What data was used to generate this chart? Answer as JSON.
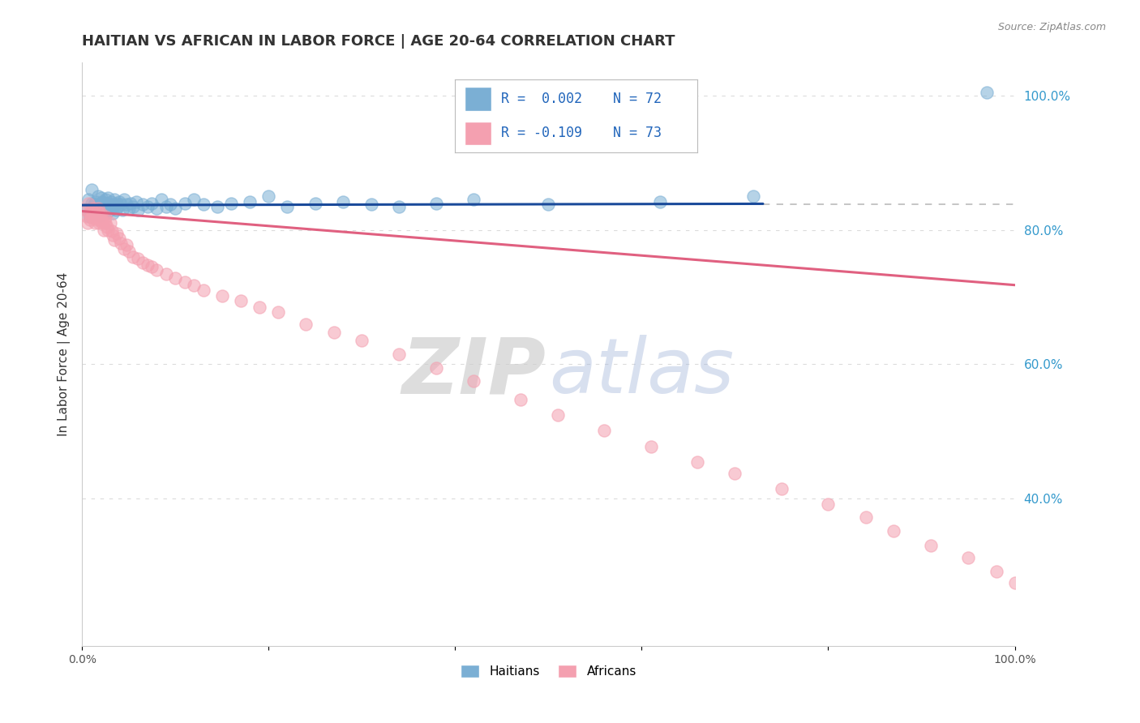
{
  "title": "HAITIAN VS AFRICAN IN LABOR FORCE | AGE 20-64 CORRELATION CHART",
  "source_text": "Source: ZipAtlas.com",
  "ylabel": "In Labor Force | Age 20-64",
  "xlim": [
    0,
    1.0
  ],
  "ylim": [
    0.18,
    1.05
  ],
  "x_tick_positions": [
    0.0,
    1.0
  ],
  "x_tick_labels": [
    "0.0%",
    "100.0%"
  ],
  "y_ticks_right": [
    0.4,
    0.6,
    0.8,
    1.0
  ],
  "y_tick_labels_right": [
    "40.0%",
    "60.0%",
    "80.0%",
    "100.0%"
  ],
  "blue_color": "#7BAFD4",
  "pink_color": "#F4A0B0",
  "blue_line_color": "#1A4A9A",
  "pink_line_color": "#E06080",
  "blue_scatter_x": [
    0.005,
    0.007,
    0.008,
    0.01,
    0.01,
    0.012,
    0.013,
    0.015,
    0.015,
    0.016,
    0.017,
    0.018,
    0.018,
    0.019,
    0.02,
    0.02,
    0.021,
    0.022,
    0.022,
    0.023,
    0.024,
    0.025,
    0.025,
    0.026,
    0.027,
    0.028,
    0.028,
    0.03,
    0.031,
    0.032,
    0.033,
    0.034,
    0.035,
    0.036,
    0.037,
    0.038,
    0.04,
    0.042,
    0.043,
    0.045,
    0.048,
    0.05,
    0.052,
    0.055,
    0.058,
    0.06,
    0.065,
    0.07,
    0.075,
    0.08,
    0.085,
    0.09,
    0.095,
    0.1,
    0.11,
    0.12,
    0.13,
    0.145,
    0.16,
    0.18,
    0.2,
    0.22,
    0.25,
    0.28,
    0.31,
    0.34,
    0.38,
    0.42,
    0.5,
    0.62,
    0.72,
    0.97
  ],
  "blue_scatter_y": [
    0.83,
    0.845,
    0.82,
    0.84,
    0.86,
    0.832,
    0.838,
    0.825,
    0.842,
    0.835,
    0.85,
    0.828,
    0.838,
    0.822,
    0.84,
    0.835,
    0.848,
    0.83,
    0.842,
    0.835,
    0.838,
    0.83,
    0.845,
    0.825,
    0.84,
    0.835,
    0.848,
    0.83,
    0.842,
    0.835,
    0.825,
    0.838,
    0.845,
    0.83,
    0.84,
    0.835,
    0.842,
    0.838,
    0.83,
    0.845,
    0.838,
    0.832,
    0.84,
    0.835,
    0.842,
    0.83,
    0.838,
    0.835,
    0.84,
    0.832,
    0.845,
    0.835,
    0.838,
    0.832,
    0.84,
    0.845,
    0.838,
    0.835,
    0.84,
    0.842,
    0.85,
    0.835,
    0.84,
    0.842,
    0.838,
    0.835,
    0.84,
    0.845,
    0.838,
    0.842,
    0.85,
    1.005
  ],
  "pink_scatter_x": [
    0.004,
    0.005,
    0.006,
    0.007,
    0.008,
    0.009,
    0.01,
    0.01,
    0.012,
    0.012,
    0.013,
    0.014,
    0.015,
    0.016,
    0.016,
    0.017,
    0.018,
    0.019,
    0.02,
    0.02,
    0.021,
    0.022,
    0.023,
    0.024,
    0.025,
    0.025,
    0.027,
    0.028,
    0.03,
    0.032,
    0.033,
    0.035,
    0.037,
    0.04,
    0.042,
    0.045,
    0.048,
    0.05,
    0.055,
    0.06,
    0.065,
    0.07,
    0.075,
    0.08,
    0.09,
    0.1,
    0.11,
    0.12,
    0.13,
    0.15,
    0.17,
    0.19,
    0.21,
    0.24,
    0.27,
    0.3,
    0.34,
    0.38,
    0.42,
    0.47,
    0.51,
    0.56,
    0.61,
    0.66,
    0.7,
    0.75,
    0.8,
    0.84,
    0.87,
    0.91,
    0.95,
    0.98,
    1.0
  ],
  "pink_scatter_y": [
    0.83,
    0.82,
    0.81,
    0.84,
    0.825,
    0.815,
    0.83,
    0.82,
    0.832,
    0.818,
    0.825,
    0.81,
    0.82,
    0.828,
    0.815,
    0.832,
    0.81,
    0.82,
    0.825,
    0.815,
    0.82,
    0.81,
    0.8,
    0.815,
    0.82,
    0.81,
    0.805,
    0.8,
    0.81,
    0.798,
    0.792,
    0.785,
    0.795,
    0.788,
    0.78,
    0.772,
    0.778,
    0.768,
    0.76,
    0.758,
    0.752,
    0.748,
    0.745,
    0.74,
    0.735,
    0.728,
    0.722,
    0.718,
    0.71,
    0.702,
    0.695,
    0.685,
    0.678,
    0.66,
    0.648,
    0.635,
    0.615,
    0.595,
    0.575,
    0.548,
    0.525,
    0.502,
    0.478,
    0.455,
    0.438,
    0.415,
    0.392,
    0.372,
    0.352,
    0.33,
    0.312,
    0.292,
    0.275
  ],
  "blue_line_x": [
    0.0,
    0.73
  ],
  "blue_line_y": [
    0.837,
    0.839
  ],
  "pink_line_x": [
    0.0,
    1.0
  ],
  "pink_line_y": [
    0.828,
    0.718
  ],
  "dashed_line_x_start": 0.73,
  "dashed_line_y": 0.838,
  "background_color": "#ffffff",
  "title_fontsize": 13,
  "axis_label_fontsize": 11,
  "tick_fontsize": 10,
  "legend_R1": "R =  0.002",
  "legend_N1": "N = 72",
  "legend_R2": "R = -0.109",
  "legend_N2": "N = 73"
}
